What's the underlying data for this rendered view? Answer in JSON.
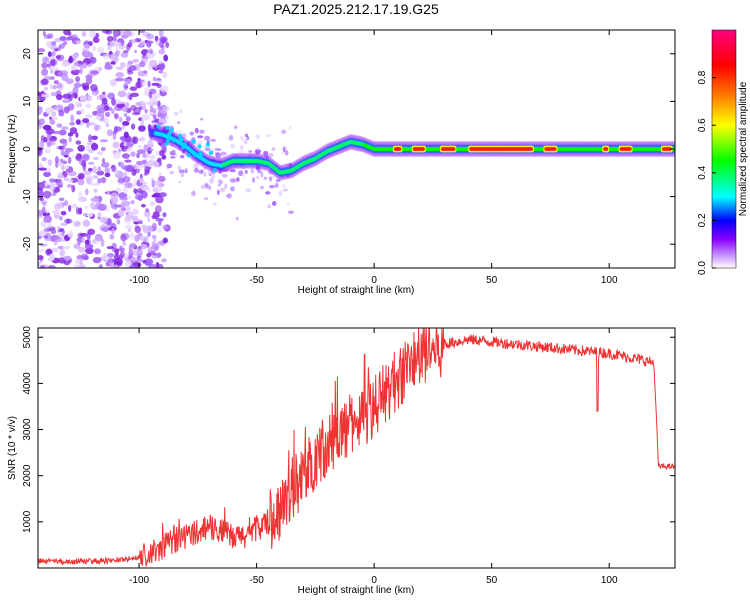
{
  "figure": {
    "title": "PAZ1.2025.212.17.19.G25"
  },
  "chart_data": [
    {
      "type": "heatmap",
      "title": "PAZ1.2025.212.17.19.G25",
      "xlabel": "Height of straight line (km)",
      "ylabel": "Frequency (Hz)",
      "xlim": [
        -143,
        128
      ],
      "ylim": [
        -25,
        25
      ],
      "xticks": [
        -100,
        -50,
        0,
        50,
        100
      ],
      "yticks": [
        -20,
        -10,
        0,
        10,
        20
      ],
      "grid": false,
      "ridge": {
        "x": [
          -95,
          -90,
          -85,
          -80,
          -75,
          -70,
          -65,
          -60,
          -55,
          -50,
          -45,
          -40,
          -35,
          -30,
          -25,
          -20,
          -15,
          -10,
          -5,
          0,
          10,
          20,
          40,
          60,
          80,
          95,
          100,
          110,
          128
        ],
        "y": [
          3.5,
          3,
          2,
          0.5,
          -1.5,
          -3,
          -3.5,
          -2.5,
          -2.5,
          -2.5,
          -3,
          -5,
          -4.5,
          -3,
          -2,
          -0.5,
          0.5,
          1.5,
          1,
          0,
          0,
          0,
          0,
          0,
          0,
          0,
          0,
          0,
          0
        ]
      },
      "colorbar": {
        "label": "Normalized spectral amplitude",
        "ticks": [
          0.0,
          0.2,
          0.4,
          0.6,
          0.8
        ],
        "range": [
          0,
          1
        ],
        "colors": [
          "#ffffff",
          "#cc99ff",
          "#8800ff",
          "#0000ff",
          "#00ffff",
          "#00ff00",
          "#ffff00",
          "#ff8000",
          "#ff0000",
          "#ff0080"
        ]
      }
    },
    {
      "type": "line",
      "xlabel": "Height of straight line (km)",
      "ylabel": "SNR (10 * v/v)",
      "xlim": [
        -143,
        128
      ],
      "ylim": [
        0,
        5200
      ],
      "xticks": [
        -100,
        -50,
        0,
        50,
        100
      ],
      "yticks": [
        1000,
        2000,
        3000,
        4000,
        5000
      ],
      "grid": false,
      "color": "#ee3333",
      "series": [
        {
          "x": [
            -143,
            -130,
            -120,
            -110,
            -100,
            -95,
            -90,
            -85,
            -80,
            -75,
            -70,
            -65,
            -60,
            -55,
            -50,
            -45,
            -40,
            -35,
            -30,
            -25,
            -20,
            -15,
            -10,
            -5,
            0,
            5,
            10,
            15,
            20,
            25,
            30,
            35,
            40,
            45,
            50,
            60,
            70,
            80,
            90,
            100,
            110,
            119,
            121,
            128
          ],
          "values": [
            150,
            130,
            150,
            170,
            220,
            300,
            450,
            600,
            700,
            800,
            900,
            800,
            650,
            700,
            850,
            1000,
            1300,
            1700,
            2000,
            2400,
            2700,
            2900,
            3100,
            3300,
            3500,
            3800,
            4100,
            4400,
            4600,
            4750,
            4850,
            4900,
            4950,
            4930,
            4900,
            4850,
            4800,
            4750,
            4700,
            4650,
            4550,
            4450,
            2200,
            2200
          ]
        }
      ]
    }
  ]
}
